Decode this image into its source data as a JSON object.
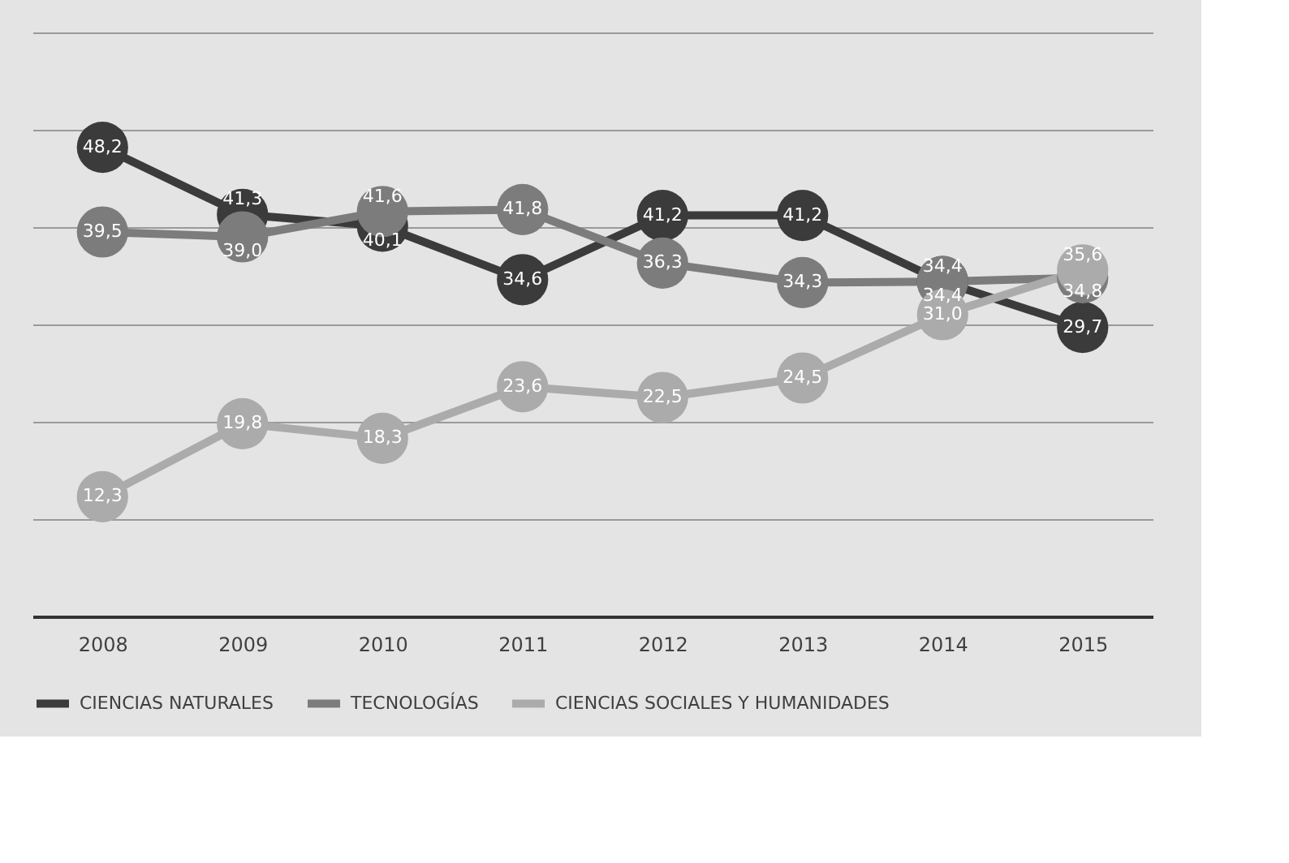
{
  "chart_data": {
    "type": "line",
    "categories": [
      "2008",
      "2009",
      "2010",
      "2011",
      "2012",
      "2013",
      "2014",
      "2015"
    ],
    "series": [
      {
        "name": "CIENCIAS NATURALES",
        "color": "#3b3b3b",
        "values": [
          48.2,
          41.3,
          40.1,
          34.6,
          41.2,
          41.2,
          34.4,
          29.7
        ],
        "value_labels": [
          "48,2",
          "41,3",
          "40,1",
          "34,6",
          "41,2",
          "41,2",
          "34,4",
          "29,7"
        ]
      },
      {
        "name": "TECNOLOGÍAS",
        "color": "#7c7c7c",
        "values": [
          39.5,
          39.0,
          41.6,
          41.8,
          36.3,
          34.3,
          34.4,
          34.8
        ],
        "value_labels": [
          "39,5",
          "39,0",
          "41,6",
          "41,8",
          "36,3",
          "34,3",
          "34,4",
          "34,8"
        ]
      },
      {
        "name": "CIENCIAS SOCIALES Y HUMANIDADES",
        "color": "#ababab",
        "values": [
          12.3,
          19.8,
          18.3,
          23.6,
          22.5,
          24.5,
          31.0,
          35.6
        ],
        "value_labels": [
          "12,3",
          "19,8",
          "18,3",
          "23,6",
          "22,5",
          "24,5",
          "31,0",
          "35,6"
        ]
      }
    ],
    "ylim": [
      0,
      60
    ],
    "yticks": [
      {
        "value": 10,
        "label": null
      },
      {
        "value": 20,
        "label": null
      },
      {
        "value": 30,
        "label": null
      },
      {
        "value": 40,
        "label": null
      },
      {
        "value": 50,
        "label": null
      },
      {
        "value": 60,
        "label": null
      }
    ],
    "grid": "y",
    "legend": "bottom",
    "tick_labels": "x",
    "marker": "circle",
    "line_style": "solid"
  }
}
